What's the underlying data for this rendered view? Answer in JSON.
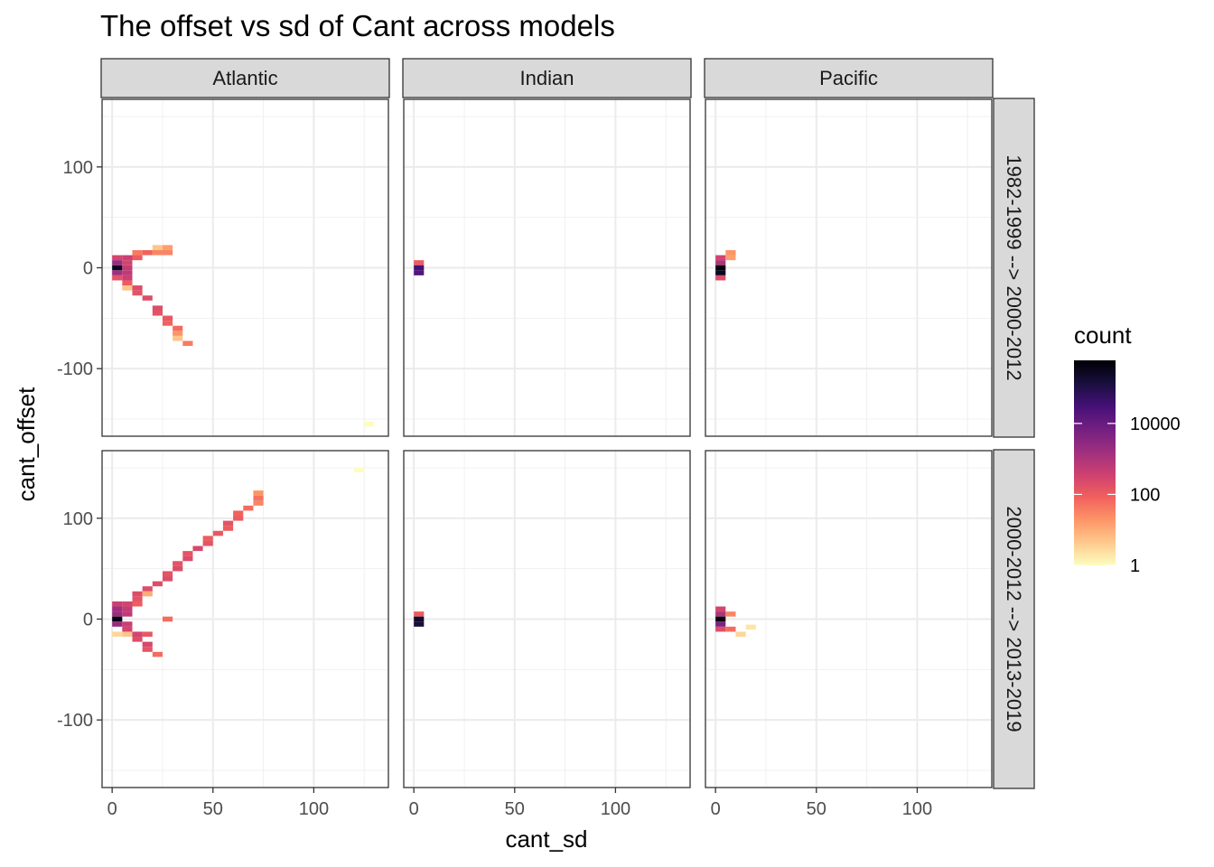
{
  "chart_data": {
    "type": "heatmap",
    "title": "The offset vs sd of Cant across models",
    "xlabel": "cant_sd",
    "ylabel": "cant_offset",
    "xlim": [
      -5,
      137
    ],
    "ylim": [
      -167,
      167
    ],
    "x_ticks": [
      0,
      50,
      100
    ],
    "x_tick_labels": [
      "0",
      "50",
      "100"
    ],
    "y_ticks": [
      -100,
      0,
      100
    ],
    "y_tick_labels": [
      "-100",
      "0",
      "100"
    ],
    "grid": true,
    "bin_width": 5,
    "bin_height": 5,
    "col_facets": [
      "Atlantic",
      "Indian",
      "Pacific"
    ],
    "row_facets": [
      "1982-1999 --> 2000-2012",
      "2000-2012 --> 2013-2019"
    ],
    "legend": {
      "title": "count",
      "position": "right",
      "scale": "log10",
      "breaks": [
        1,
        100,
        10000
      ],
      "break_labels": [
        "1",
        "100",
        "10000"
      ],
      "max": 600000,
      "colors": [
        "#FCFDBF",
        "#FEC98D",
        "#FD9567",
        "#F1605D",
        "#CD4071",
        "#9E2F7F",
        "#721F81",
        "#451077",
        "#180F3D",
        "#000004"
      ]
    },
    "panels": [
      {
        "region": "Atlantic",
        "period": "1982-1999 --> 2000-2012",
        "cells": [
          {
            "x": 2.5,
            "y": 0,
            "count": 300000
          },
          {
            "x": 2.5,
            "y": 10,
            "count": 300
          },
          {
            "x": 2.5,
            "y": 5,
            "count": 2000
          },
          {
            "x": 2.5,
            "y": -5,
            "count": 1500
          },
          {
            "x": 2.5,
            "y": -10,
            "count": 150
          },
          {
            "x": 7.5,
            "y": 10,
            "count": 400
          },
          {
            "x": 7.5,
            "y": 5,
            "count": 300
          },
          {
            "x": 7.5,
            "y": 0,
            "count": 500
          },
          {
            "x": 7.5,
            "y": -5,
            "count": 600
          },
          {
            "x": 7.5,
            "y": -10,
            "count": 400
          },
          {
            "x": 7.5,
            "y": -15,
            "count": 100
          },
          {
            "x": 7.5,
            "y": -20,
            "count": 5
          },
          {
            "x": 12.5,
            "y": 15,
            "count": 40
          },
          {
            "x": 12.5,
            "y": 10,
            "count": 100
          },
          {
            "x": 12.5,
            "y": -20,
            "count": 200
          },
          {
            "x": 12.5,
            "y": -25,
            "count": 150
          },
          {
            "x": 17.5,
            "y": 15,
            "count": 80
          },
          {
            "x": 17.5,
            "y": -30,
            "count": 200
          },
          {
            "x": 22.5,
            "y": 20,
            "count": 5
          },
          {
            "x": 22.5,
            "y": 15,
            "count": 30
          },
          {
            "x": 22.5,
            "y": -40,
            "count": 200
          },
          {
            "x": 22.5,
            "y": -45,
            "count": 150
          },
          {
            "x": 27.5,
            "y": 20,
            "count": 15
          },
          {
            "x": 27.5,
            "y": 15,
            "count": 30
          },
          {
            "x": 27.5,
            "y": -50,
            "count": 120
          },
          {
            "x": 27.5,
            "y": -55,
            "count": 80
          },
          {
            "x": 32.5,
            "y": -60,
            "count": 60
          },
          {
            "x": 32.5,
            "y": -65,
            "count": 20
          },
          {
            "x": 32.5,
            "y": -70,
            "count": 5
          },
          {
            "x": 37.5,
            "y": -75,
            "count": 40
          },
          {
            "x": 127.5,
            "y": -155,
            "count": 1
          }
        ]
      },
      {
        "region": "Indian",
        "period": "1982-1999 --> 2000-2012",
        "cells": [
          {
            "x": 2.5,
            "y": 5,
            "count": 100
          },
          {
            "x": 2.5,
            "y": 0,
            "count": 30000
          },
          {
            "x": 2.5,
            "y": -5,
            "count": 20000
          }
        ]
      },
      {
        "region": "Pacific",
        "period": "1982-1999 --> 2000-2012",
        "cells": [
          {
            "x": 2.5,
            "y": 10,
            "count": 300
          },
          {
            "x": 2.5,
            "y": 5,
            "count": 1000
          },
          {
            "x": 2.5,
            "y": 0,
            "count": 500000
          },
          {
            "x": 2.5,
            "y": -5,
            "count": 300000
          },
          {
            "x": 2.5,
            "y": -10,
            "count": 200
          },
          {
            "x": 7.5,
            "y": 15,
            "count": 20
          },
          {
            "x": 7.5,
            "y": 10,
            "count": 15
          }
        ]
      },
      {
        "region": "Atlantic",
        "period": "2000-2012 --> 2013-2019",
        "cells": [
          {
            "x": 2.5,
            "y": 15,
            "count": 400
          },
          {
            "x": 2.5,
            "y": 10,
            "count": 1500
          },
          {
            "x": 2.5,
            "y": 5,
            "count": 2000
          },
          {
            "x": 2.5,
            "y": 0,
            "count": 400000
          },
          {
            "x": 2.5,
            "y": -5,
            "count": 2000
          },
          {
            "x": 2.5,
            "y": -15,
            "count": 3
          },
          {
            "x": 7.5,
            "y": 15,
            "count": 300
          },
          {
            "x": 7.5,
            "y": 10,
            "count": 500
          },
          {
            "x": 7.5,
            "y": 5,
            "count": 600
          },
          {
            "x": 7.5,
            "y": -5,
            "count": 400
          },
          {
            "x": 7.5,
            "y": -10,
            "count": 300
          },
          {
            "x": 7.5,
            "y": -15,
            "count": 5
          },
          {
            "x": 12.5,
            "y": 15,
            "count": 100
          },
          {
            "x": 12.5,
            "y": 20,
            "count": 150
          },
          {
            "x": 12.5,
            "y": 25,
            "count": 200
          },
          {
            "x": 12.5,
            "y": -15,
            "count": 300
          },
          {
            "x": 12.5,
            "y": -20,
            "count": 200
          },
          {
            "x": 17.5,
            "y": 30,
            "count": 200
          },
          {
            "x": 17.5,
            "y": 25,
            "count": 10
          },
          {
            "x": 17.5,
            "y": -25,
            "count": 250
          },
          {
            "x": 17.5,
            "y": -30,
            "count": 150
          },
          {
            "x": 17.5,
            "y": -15,
            "count": 120
          },
          {
            "x": 22.5,
            "y": 35,
            "count": 200
          },
          {
            "x": 22.5,
            "y": -35,
            "count": 60
          },
          {
            "x": 27.5,
            "y": 40,
            "count": 200
          },
          {
            "x": 27.5,
            "y": 45,
            "count": 150
          },
          {
            "x": 27.5,
            "y": 0,
            "count": 60
          },
          {
            "x": 32.5,
            "y": 50,
            "count": 200
          },
          {
            "x": 32.5,
            "y": 55,
            "count": 150
          },
          {
            "x": 37.5,
            "y": 60,
            "count": 200
          },
          {
            "x": 37.5,
            "y": 65,
            "count": 150
          },
          {
            "x": 42.5,
            "y": 70,
            "count": 250
          },
          {
            "x": 47.5,
            "y": 75,
            "count": 150
          },
          {
            "x": 47.5,
            "y": 80,
            "count": 100
          },
          {
            "x": 52.5,
            "y": 85,
            "count": 120
          },
          {
            "x": 57.5,
            "y": 90,
            "count": 100
          },
          {
            "x": 57.5,
            "y": 95,
            "count": 150
          },
          {
            "x": 62.5,
            "y": 100,
            "count": 100
          },
          {
            "x": 62.5,
            "y": 105,
            "count": 80
          },
          {
            "x": 67.5,
            "y": 110,
            "count": 60
          },
          {
            "x": 72.5,
            "y": 115,
            "count": 30
          },
          {
            "x": 72.5,
            "y": 120,
            "count": 50
          },
          {
            "x": 72.5,
            "y": 125,
            "count": 20
          },
          {
            "x": 122.5,
            "y": 148,
            "count": 1
          }
        ]
      },
      {
        "region": "Indian",
        "period": "2000-2012 --> 2013-2019",
        "cells": [
          {
            "x": 2.5,
            "y": 5,
            "count": 100
          },
          {
            "x": 2.5,
            "y": 0,
            "count": 200000
          },
          {
            "x": 2.5,
            "y": -5,
            "count": 150000
          }
        ]
      },
      {
        "region": "Pacific",
        "period": "2000-2012 --> 2013-2019",
        "cells": [
          {
            "x": 2.5,
            "y": 10,
            "count": 300
          },
          {
            "x": 2.5,
            "y": 5,
            "count": 1000
          },
          {
            "x": 2.5,
            "y": 0,
            "count": 500000
          },
          {
            "x": 2.5,
            "y": -5,
            "count": 5000
          },
          {
            "x": 2.5,
            "y": -10,
            "count": 200
          },
          {
            "x": 7.5,
            "y": 5,
            "count": 30
          },
          {
            "x": 7.5,
            "y": -10,
            "count": 60
          },
          {
            "x": 12.5,
            "y": -15,
            "count": 3
          },
          {
            "x": 17.5,
            "y": -8,
            "count": 2
          }
        ]
      }
    ]
  }
}
